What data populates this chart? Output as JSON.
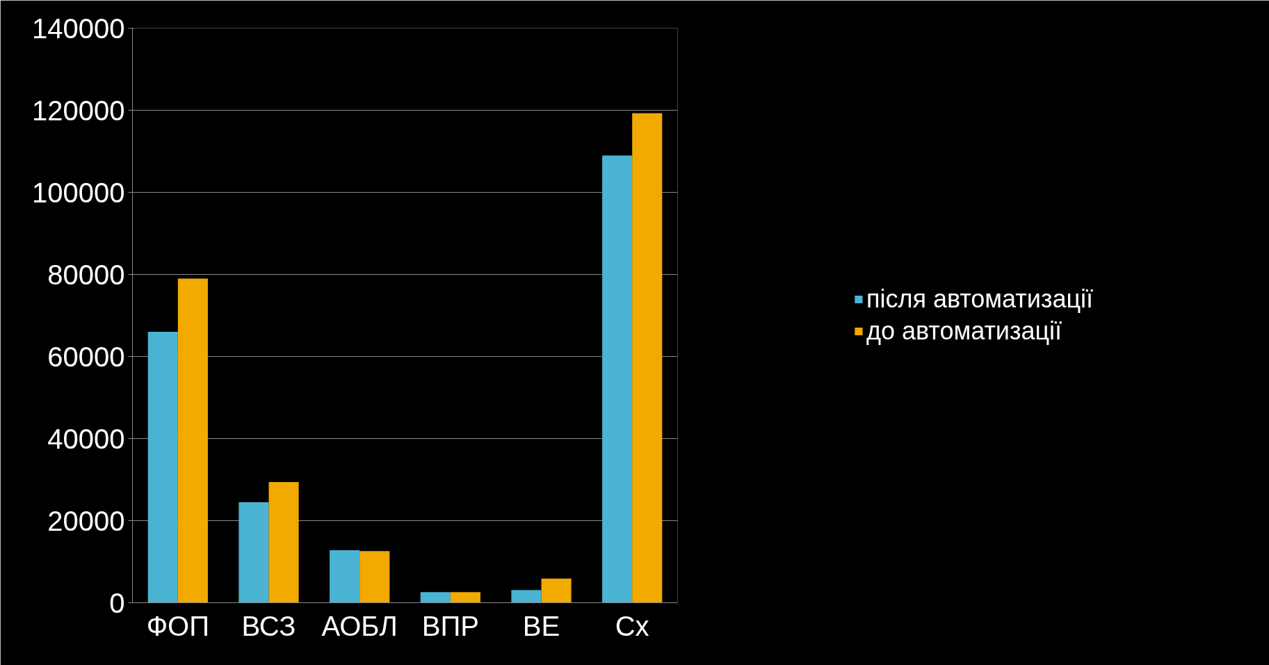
{
  "chart_data": {
    "type": "bar",
    "categories": [
      "ФОП",
      "ВСЗ",
      "АОБЛ",
      "ВПР",
      "ВЕ",
      "Сх"
    ],
    "series": [
      {
        "name": "після автоматизації",
        "color": "#4ab4d2",
        "values": [
          66000,
          24500,
          12800,
          2600,
          3100,
          109000
        ]
      },
      {
        "name": "до автоматизації",
        "color": "#f2a900",
        "values": [
          79000,
          29400,
          12600,
          2600,
          5900,
          119300
        ]
      }
    ],
    "ylim": [
      0,
      140000
    ],
    "yticks": [
      0,
      20000,
      40000,
      60000,
      80000,
      100000,
      120000,
      140000
    ],
    "grid": "y",
    "legend": "right"
  }
}
